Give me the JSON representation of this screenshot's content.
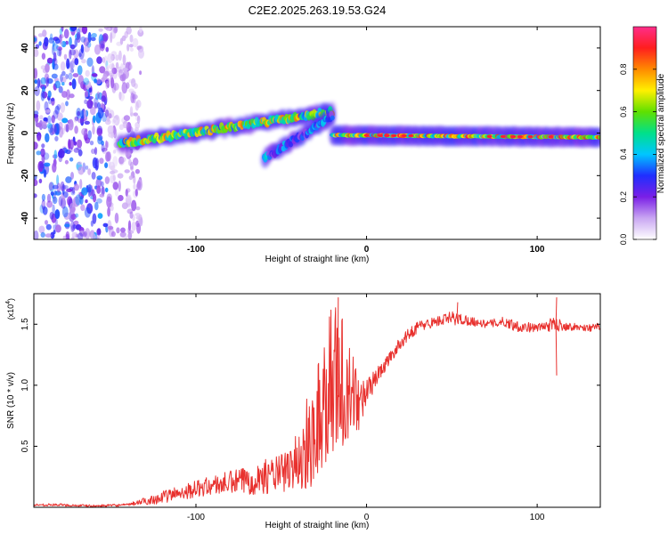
{
  "title": "C2E2.2025.263.19.53.G24",
  "chart_data": [
    {
      "type": "heatmap",
      "name": "spectrogram",
      "xlabel": "Height of straight line (km)",
      "ylabel": "Frequency (Hz)",
      "xlim": [
        -195,
        137
      ],
      "ylim": [
        -50,
        50
      ],
      "xticks": [
        -100,
        0,
        100
      ],
      "yticks": [
        -40,
        -20,
        0,
        20,
        40
      ],
      "colorbar": {
        "label": "Normalized spectral amplitude",
        "range": [
          0.0,
          1.0
        ],
        "ticks": [
          0.0,
          0.2,
          0.4,
          0.6,
          0.8
        ],
        "colors": [
          "#ffffff",
          "#c9a6f2",
          "#7a1fe6",
          "#1f2fff",
          "#00c6ff",
          "#00e08a",
          "#5fe000",
          "#fff000",
          "#ff8a00",
          "#ff1e1e",
          "#ff2d8a"
        ]
      },
      "ridges": [
        {
          "x_start": -145,
          "x_end": -20,
          "f_start": -5,
          "f_end": 10,
          "peak_amplitude": 0.85
        },
        {
          "x_start": -60,
          "x_end": -20,
          "f_start": -12,
          "f_end": 8,
          "peak_amplitude": 0.45
        },
        {
          "x_start": -20,
          "x_end": 137,
          "f_start": -1,
          "f_end": -2,
          "peak_amplitude": 0.95
        }
      ],
      "noise_region": {
        "x_start": -195,
        "x_end": -140,
        "amplitude": 0.3
      }
    },
    {
      "type": "line",
      "name": "snr",
      "xlabel": "Height of straight line (km)",
      "ylabel": "SNR (10 * v/v)",
      "y_multiplier": "(x10^4)",
      "multiplier_base": "(x10",
      "multiplier_exp": "4",
      "multiplier_close": ")",
      "xlim": [
        -195,
        137
      ],
      "ylim": [
        0,
        1.75
      ],
      "xticks": [
        -100,
        0,
        100
      ],
      "yticks": [
        0.5,
        1.0,
        1.5
      ],
      "ytick_labels": [
        "0.5",
        "1.0",
        "1.5"
      ],
      "color": "#e8312e",
      "series": [
        {
          "name": "SNR",
          "x": [
            -195,
            -180,
            -160,
            -140,
            -130,
            -120,
            -110,
            -100,
            -90,
            -80,
            -70,
            -60,
            -50,
            -40,
            -35,
            -30,
            -25,
            -20,
            -15,
            -10,
            -5,
            0,
            5,
            10,
            15,
            20,
            25,
            30,
            40,
            50,
            60,
            70,
            80,
            90,
            100,
            110,
            120,
            130,
            137
          ],
          "y": [
            0.02,
            0.02,
            0.01,
            0.02,
            0.05,
            0.08,
            0.12,
            0.15,
            0.18,
            0.2,
            0.22,
            0.25,
            0.28,
            0.32,
            0.4,
            0.55,
            0.7,
            0.9,
            0.85,
            0.75,
            0.8,
            0.95,
            1.05,
            1.15,
            1.25,
            1.35,
            1.42,
            1.48,
            1.52,
            1.55,
            1.53,
            1.5,
            1.52,
            1.48,
            1.47,
            1.5,
            1.48,
            1.47,
            1.48
          ],
          "noise": [
            0.01,
            0.01,
            0.01,
            0.01,
            0.03,
            0.05,
            0.06,
            0.07,
            0.08,
            0.1,
            0.12,
            0.14,
            0.16,
            0.22,
            0.35,
            0.45,
            0.55,
            0.6,
            0.55,
            0.4,
            0.25,
            0.12,
            0.08,
            0.06,
            0.05,
            0.05,
            0.05,
            0.05,
            0.04,
            0.06,
            0.04,
            0.03,
            0.04,
            0.05,
            0.03,
            0.06,
            0.03,
            0.03,
            0.03
          ]
        }
      ],
      "spikes": [
        {
          "x": -17,
          "y": 1.72
        },
        {
          "x": 53,
          "y": 1.68
        },
        {
          "x": 111,
          "y": 1.72
        },
        {
          "x": 111,
          "y": 1.08
        }
      ]
    }
  ]
}
